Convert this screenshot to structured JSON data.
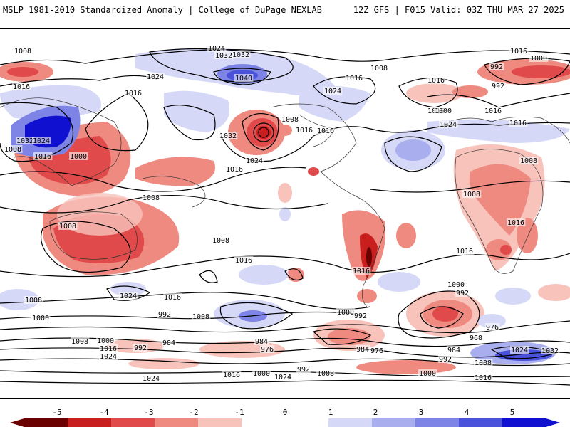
{
  "header": {
    "left_title": "MSLP 1981-2010 Standardized Anomaly | College of DuPage NEXLAB",
    "right_title": "12Z GFS | F015 Valid: 03Z THU MAR 27 2025"
  },
  "colorbar": {
    "labels": [
      "-5",
      "-4",
      "-3",
      "-2",
      "-1",
      "0",
      "1",
      "2",
      "3",
      "4",
      "5"
    ],
    "colors": {
      "neg5": "#6a0000",
      "neg4": "#c81e1e",
      "neg3": "#e04a4a",
      "neg2": "#ef8a80",
      "neg1": "#f7c3bb",
      "zero": "#ffffff",
      "pos1": "#d6d8f7",
      "pos2": "#a9aeef",
      "pos3": "#7d84e6",
      "pos4": "#4a52dc",
      "pos5": "#1010d0"
    }
  },
  "isobar_labels": [
    "1024",
    "1032",
    "1016",
    "1008",
    "992",
    "1000",
    "1008",
    "1016",
    "1024",
    "1016",
    "1040",
    "1016",
    "1024",
    "1032",
    "1008",
    "1016",
    "1016",
    "1024",
    "1008",
    "992",
    "1000",
    "1016",
    "1016",
    "1024",
    "1032",
    "1024",
    "1000",
    "1016",
    "1016",
    "1016",
    "1008",
    "1008",
    "1008",
    "1008",
    "1016",
    "1008",
    "1016",
    "1016",
    "1016",
    "1016",
    "1024",
    "1016",
    "1008",
    "1000",
    "992",
    "1008",
    "1000",
    "992",
    "1000",
    "992",
    "976",
    "984",
    "1008",
    "1000",
    "1016",
    "1024",
    "992",
    "984",
    "984",
    "976",
    "968",
    "984",
    "992",
    "976",
    "1008",
    "1024",
    "1032",
    "1032",
    "1024",
    "1016",
    "1000",
    "1024",
    "992",
    "1008",
    "1000",
    "1016"
  ]
}
